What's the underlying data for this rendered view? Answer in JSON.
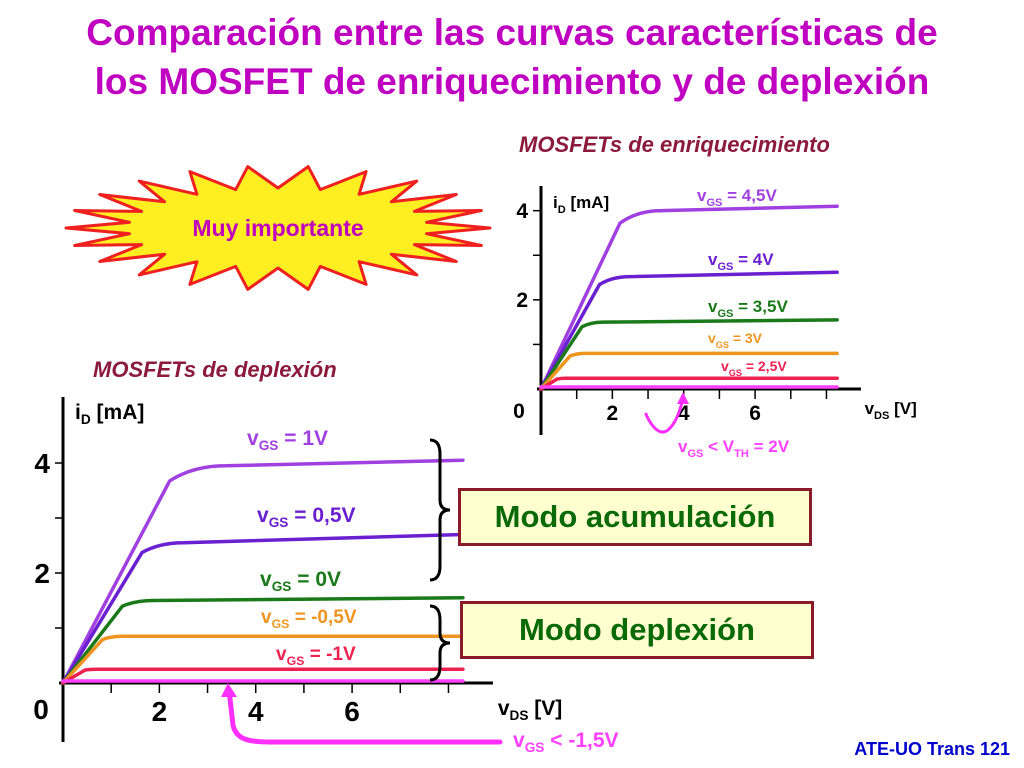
{
  "title": {
    "line1": "Comparación entre las curvas características de",
    "line2": "los MOSFET de enriquecimiento y de deplexión"
  },
  "badge": {
    "text": "Muy importante"
  },
  "footer": "ATE-UO Trans 121",
  "chart_data": [
    {
      "type": "line",
      "title": "MOSFETs de enriquecimiento",
      "ylabel": "iD [mA]",
      "xlabel": "vDS [V]",
      "ylim": [
        0,
        4.8
      ],
      "xlim": [
        0,
        8.8
      ],
      "xticks": [
        "2",
        "4",
        "6"
      ],
      "yticks": [
        "4",
        "2"
      ],
      "origin_label": "0",
      "series": [
        {
          "name": "vGS = 4,5V",
          "color": "#a040e0",
          "sat": 4.0,
          "knee": 2.7,
          "end": 4.1
        },
        {
          "name": "vGS = 4V",
          "color": "#6a20d0",
          "sat": 2.52,
          "knee": 2.0,
          "end": 2.62
        },
        {
          "name": "vGS = 3,5V",
          "color": "#1a7a1a",
          "sat": 1.5,
          "knee": 1.4,
          "end": 1.55
        },
        {
          "name": "vGS = 3V",
          "color": "#ee9520",
          "sat": 0.8,
          "knee": 1.0,
          "end": 0.8
        },
        {
          "name": "vGS = 2,5V",
          "color": "#ee2050",
          "sat": 0.24,
          "knee": 0.55,
          "end": 0.24
        },
        {
          "name": "vGS < VTH = 2V",
          "color": "#ff40ff",
          "sat": 0.0,
          "knee": 0.0,
          "end": 0.0
        }
      ]
    },
    {
      "type": "line",
      "title": "MOSFETs de deplexión",
      "ylabel": "iD [mA]",
      "xlabel": "vDS [V]",
      "ylim": [
        0,
        4.8
      ],
      "xlim": [
        0,
        8.8
      ],
      "xticks": [
        "2",
        "4",
        "6"
      ],
      "yticks": [
        "4",
        "2"
      ],
      "origin_label": "0",
      "series": [
        {
          "name": "vGS = 1V",
          "color": "#a040e0",
          "sat": 3.95,
          "knee": 2.7,
          "end": 4.05
        },
        {
          "name": "vGS = 0,5V",
          "color": "#6a20d0",
          "sat": 2.55,
          "knee": 2.0,
          "end": 2.7
        },
        {
          "name": "vGS = 0V",
          "color": "#1a7a1a",
          "sat": 1.5,
          "knee": 1.5,
          "end": 1.55
        },
        {
          "name": "vGS = -0,5V",
          "color": "#ee9520",
          "sat": 0.85,
          "knee": 1.0,
          "end": 0.85
        },
        {
          "name": "vGS = -1V",
          "color": "#ee2050",
          "sat": 0.25,
          "knee": 0.55,
          "end": 0.25
        },
        {
          "name": "vGS < -1,5V",
          "color": "#ff40ff",
          "sat": 0.0,
          "knee": 0.0,
          "end": 0.0
        }
      ]
    }
  ],
  "modes": {
    "acumulacion": "Modo acumulación",
    "deplexion": "Modo deplexión"
  }
}
